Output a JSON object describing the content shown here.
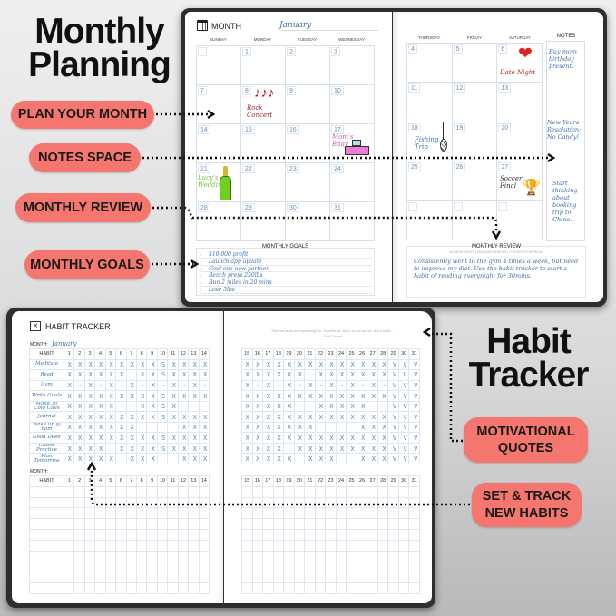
{
  "headings": {
    "monthly_planning": "Monthly Planning",
    "habit_tracker": "Habit Tracker"
  },
  "callouts": {
    "plan": "PLAN YOUR MONTH",
    "notes": "NOTES SPACE",
    "review": "MONTHLY REVIEW",
    "goals": "MONTHLY GOALS",
    "quotes": "MOTIVATIONAL QUOTES",
    "track": "SET & TRACK NEW HABITS"
  },
  "colors": {
    "callout": "#f4766e",
    "ink": "#3a6fb0",
    "cover": "#2e2e2e"
  },
  "calendar": {
    "month_label": "MONTH",
    "month_value": "January",
    "icon": "calendar-icon",
    "left_days": [
      "SUNDAY",
      "MONDAY",
      "TUESDAY",
      "WEDNESDAY"
    ],
    "right_days": [
      "THURSDAY",
      "FRIDAY",
      "SATURDAY"
    ],
    "notes_label": "NOTES",
    "left_weeks": [
      [
        "",
        "1",
        "2",
        "3"
      ],
      [
        "7",
        "8",
        "9",
        "10"
      ],
      [
        "14",
        "15",
        "16",
        "17"
      ],
      [
        "21",
        "22",
        "23",
        "24"
      ],
      [
        "28",
        "29",
        "30",
        "31"
      ]
    ],
    "right_weeks": [
      [
        "4",
        "5",
        "6"
      ],
      [
        "11",
        "12",
        "13"
      ],
      [
        "18",
        "19",
        "20"
      ],
      [
        "25",
        "26",
        "27"
      ],
      [
        "",
        "",
        ""
      ]
    ],
    "events": {
      "rock": "Rock Concert",
      "date": "Date Night",
      "mom": "Mom's Bday",
      "fishing": "Fishing Trip",
      "lucy": "Lucy's Wedding",
      "soccer": "Soccer Final"
    },
    "notes": [
      "Buy mom birthday present.",
      "New Years Resolution: No Candy!",
      "Start thinking about booking trip to China."
    ],
    "goals_label": "MONTHLY GOALS",
    "goals": [
      "$10,000 profit",
      "Launch app update",
      "Find one new partner",
      "Bench press 250lbs",
      "Run 2 miles in 20 mins",
      "Lose 5lbs"
    ],
    "review_label": "MONTHLY REVIEW",
    "review_sub": "ACHIEVEMENTS | LESSONS LEARNED | THINGS TO IMPROVE",
    "review_text": "Consistently went to the gym 4 times a week, but need to improve my diet. Use the habit tracker to start a habit of reading everynight for 30mins."
  },
  "habit": {
    "title": "HABIT TRACKER",
    "icon": "x-box-icon",
    "month_label": "MONTH:",
    "month_value": "January",
    "habit_header": "HABIT",
    "quote": "\"We are what we repeatedly do. Excellence, then, is not an act, but a habit.\"",
    "quote_author": "- Will Durant",
    "days_left": [
      "1",
      "2",
      "3",
      "4",
      "5",
      "6",
      "7",
      "8",
      "9",
      "10",
      "11",
      "12",
      "13",
      "14"
    ],
    "days_right": [
      "15",
      "16",
      "17",
      "18",
      "19",
      "20",
      "21",
      "22",
      "23",
      "24",
      "25",
      "26",
      "27",
      "28",
      "29",
      "30",
      "31"
    ],
    "habits": [
      {
        "name": "Meditate",
        "left": "XXXXXXXXXSXXXX",
        "right": "XXXXXXXXXXXXXXVVV"
      },
      {
        "name": "Read",
        "left": "XXXXXX XXSXXXX",
        "right": "XXXXXX XXXXXXXVVV"
      },
      {
        "name": "Gym",
        "left": "X-X-X-X-X-X-X-",
        "right": "X-X-X-X-X-X-X-VVV"
      },
      {
        "name": "Write Goals",
        "left": "XXXXXXXXXSXXXX",
        "right": "XXXXXXXXXXXXXXVVV"
      },
      {
        "name": "Make 30 Cold Calls",
        "left": "XXXXX--XXSX --",
        "right": "XXXXX--XXXXX--VVV"
      },
      {
        "name": "Journal",
        "left": "XXXXXXXXXSXXXX",
        "right": "XXXXXXXXXXXXXXVVV"
      },
      {
        "name": "Wake up @ 6am",
        "left": "XXXXXXX    XXX",
        "right": "XXXXXXX    XXXVVV"
      },
      {
        "name": "Good Deed",
        "left": "XXXXXXXXXSXXXX",
        "right": "XXXXXXXXXXXXXXVVV"
      },
      {
        "name": "Guitar Practice",
        "left": "XXXX XXXXSXXXX",
        "right": "XXXX XXXXXXXXXVVV"
      },
      {
        "name": "Plan Tomorrow",
        "left": "XXXXX XXX  XXX",
        "right": "XXXXX XXX  XXXVVV"
      }
    ],
    "blank_rows": 10
  }
}
